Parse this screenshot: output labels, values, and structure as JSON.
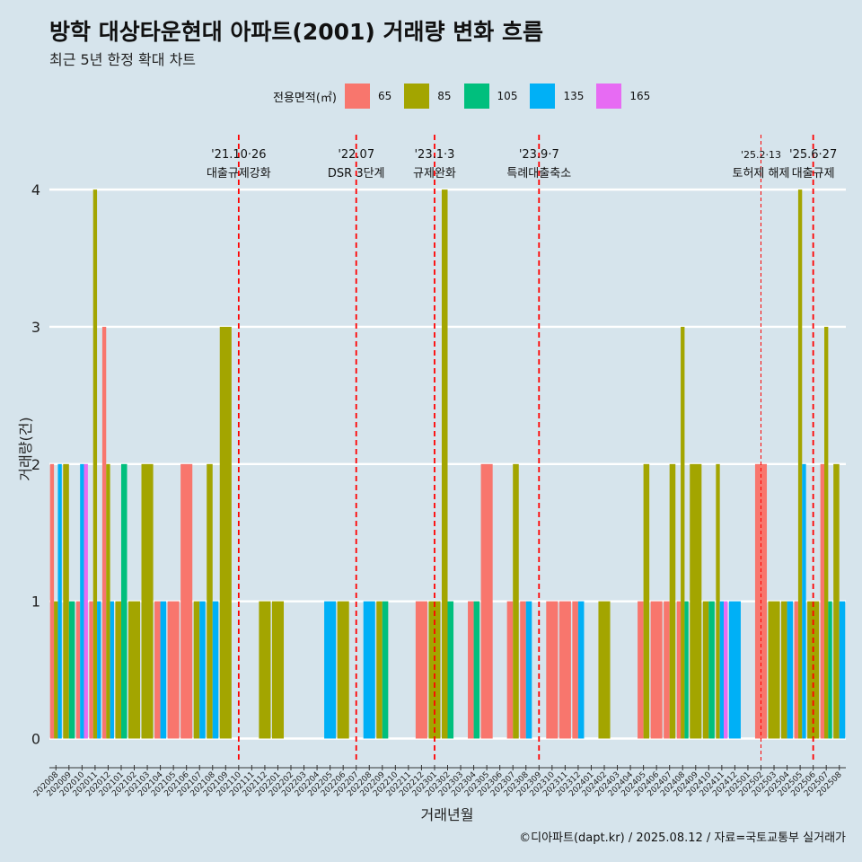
{
  "title": "방학 대상타운현대 아파트(2001) 거래량 변화 흐름",
  "subtitle": "최근 5년 한정 확대 차트",
  "caption": "©디아파트(dapt.kr) / 2025.08.12 / 자료=국토교통부 실거래가",
  "legend": {
    "title": "전용면적(㎡)",
    "items": [
      {
        "label": "65",
        "color": "#F8766D"
      },
      {
        "label": "85",
        "color": "#A3A500"
      },
      {
        "label": "105",
        "color": "#00BF7D"
      },
      {
        "label": "135",
        "color": "#00B0F6"
      },
      {
        "label": "165",
        "color": "#E76BF3"
      }
    ]
  },
  "chart_data": {
    "type": "bar",
    "xlabel": "거래년월",
    "ylabel": "거래량(건)",
    "ylim": [
      -0.18,
      4.4
    ],
    "yticks": [
      0,
      1,
      2,
      3,
      4
    ],
    "grid": true,
    "months": [
      "202008",
      "202009",
      "202010",
      "202011",
      "202012",
      "202101",
      "202102",
      "202103",
      "202104",
      "202105",
      "202106",
      "202107",
      "202108",
      "202109",
      "202110",
      "202111",
      "202112",
      "202201",
      "202202",
      "202203",
      "202204",
      "202205",
      "202206",
      "202207",
      "202208",
      "202209",
      "202210",
      "202211",
      "202212",
      "202301",
      "202302",
      "202303",
      "202304",
      "202305",
      "202306",
      "202307",
      "202308",
      "202309",
      "202310",
      "202311",
      "202312",
      "202401",
      "202402",
      "202403",
      "202404",
      "202405",
      "202406",
      "202407",
      "202408",
      "202409",
      "202410",
      "202411",
      "202412",
      "202501",
      "202502",
      "202503",
      "202504",
      "202505",
      "202506",
      "202507",
      "202508"
    ],
    "bars": [
      [
        "202008",
        [
          2,
          1,
          0,
          2,
          0
        ]
      ],
      [
        "202009",
        [
          0,
          2,
          1,
          0,
          0
        ]
      ],
      [
        "202010",
        [
          1,
          0,
          0,
          2,
          2
        ]
      ],
      [
        "202011",
        [
          1,
          4,
          0,
          1,
          0
        ]
      ],
      [
        "202012",
        [
          3,
          2,
          0,
          1,
          0
        ]
      ],
      [
        "202101",
        [
          0,
          1,
          2,
          0,
          0
        ]
      ],
      [
        "202102",
        [
          0,
          1,
          0,
          0,
          0
        ]
      ],
      [
        "202103",
        [
          0,
          2,
          0,
          0,
          0
        ]
      ],
      [
        "202104",
        [
          1,
          0,
          0,
          1,
          0
        ]
      ],
      [
        "202105",
        [
          1,
          0,
          0,
          0,
          0
        ]
      ],
      [
        "202106",
        [
          2,
          0,
          0,
          0,
          0
        ]
      ],
      [
        "202107",
        [
          0,
          1,
          0,
          1,
          0
        ]
      ],
      [
        "202108",
        [
          0,
          2,
          0,
          1,
          0
        ]
      ],
      [
        "202109",
        [
          0,
          3,
          0,
          0,
          0
        ]
      ],
      [
        "202112",
        [
          0,
          1,
          0,
          0,
          0
        ]
      ],
      [
        "202201",
        [
          0,
          1,
          0,
          0,
          0
        ]
      ],
      [
        "202205",
        [
          0,
          0,
          0,
          1,
          0
        ]
      ],
      [
        "202206",
        [
          0,
          1,
          0,
          0,
          0
        ]
      ],
      [
        "202208",
        [
          0,
          0,
          0,
          1,
          0
        ]
      ],
      [
        "202209",
        [
          0,
          1,
          1,
          0,
          0
        ]
      ],
      [
        "202212",
        [
          1,
          0,
          0,
          0,
          0
        ]
      ],
      [
        "202301",
        [
          0,
          1,
          0,
          0,
          0
        ]
      ],
      [
        "202302",
        [
          0,
          4,
          1,
          0,
          0
        ]
      ],
      [
        "202304",
        [
          1,
          0,
          1,
          0,
          0
        ]
      ],
      [
        "202305",
        [
          2,
          0,
          0,
          0,
          0
        ]
      ],
      [
        "202307",
        [
          1,
          2,
          0,
          0,
          0
        ]
      ],
      [
        "202308",
        [
          1,
          0,
          0,
          1,
          0
        ]
      ],
      [
        "202310",
        [
          1,
          0,
          0,
          0,
          0
        ]
      ],
      [
        "202311",
        [
          1,
          0,
          0,
          0,
          0
        ]
      ],
      [
        "202312",
        [
          1,
          0,
          0,
          1,
          0
        ]
      ],
      [
        "202402",
        [
          0,
          1,
          0,
          0,
          0
        ]
      ],
      [
        "202405",
        [
          1,
          2,
          0,
          0,
          0
        ]
      ],
      [
        "202406",
        [
          1,
          0,
          0,
          0,
          0
        ]
      ],
      [
        "202407",
        [
          1,
          2,
          0,
          0,
          0
        ]
      ],
      [
        "202408",
        [
          1,
          3,
          1,
          0,
          0
        ]
      ],
      [
        "202409",
        [
          0,
          2,
          0,
          0,
          0
        ]
      ],
      [
        "202410",
        [
          0,
          1,
          1,
          0,
          0
        ]
      ],
      [
        "202411",
        [
          0,
          2,
          0,
          1,
          1
        ]
      ],
      [
        "202412",
        [
          0,
          0,
          0,
          1,
          0
        ]
      ],
      [
        "202502",
        [
          2,
          0,
          0,
          0,
          0
        ]
      ],
      [
        "202503",
        [
          0,
          1,
          0,
          0,
          0
        ]
      ],
      [
        "202504",
        [
          0,
          1,
          0,
          1,
          0
        ]
      ],
      [
        "202505",
        [
          1,
          4,
          0,
          2,
          0
        ]
      ],
      [
        "202506",
        [
          0,
          1,
          0,
          0,
          0
        ]
      ],
      [
        "202507",
        [
          2,
          3,
          1,
          0,
          0
        ]
      ],
      [
        "202508",
        [
          0,
          2,
          0,
          1,
          0
        ]
      ]
    ],
    "events": [
      {
        "month": "202110",
        "date": "'21.10·26",
        "label": "대출규제강화",
        "style": "major"
      },
      {
        "month": "202207",
        "date": "'22.07",
        "label": "DSR 3단계",
        "style": "major"
      },
      {
        "month": "202301",
        "date": "'23.1·3",
        "label": "규제완화",
        "style": "major"
      },
      {
        "month": "202309",
        "date": "'23.9·7",
        "label": "특례대출축소",
        "style": "major"
      },
      {
        "month": "202502",
        "date": "'25.2·13",
        "label": "토허제 해제",
        "style": "minor"
      },
      {
        "month": "202506",
        "date": "'25.6·27",
        "label": "대출규제",
        "style": "major"
      }
    ]
  }
}
